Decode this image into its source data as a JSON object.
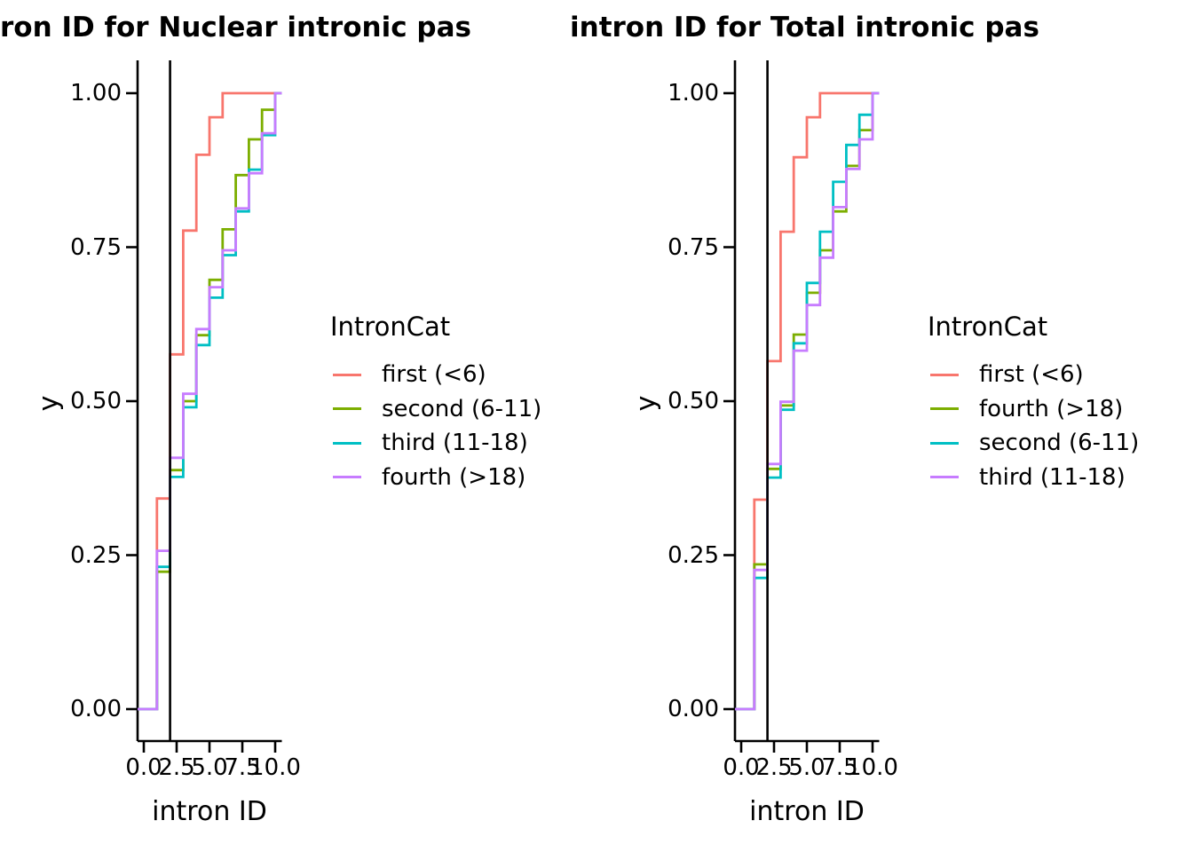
{
  "figure": {
    "background": "#ffffff",
    "text_color": "#000000",
    "axis_color": "#000000",
    "palette": {
      "salmon": "#F8766D",
      "olive": "#7CAE00",
      "teal": "#00BFC4",
      "purple": "#C77CFF"
    }
  },
  "chart_data": [
    {
      "type": "line",
      "subtype": "ecdf-step",
      "title": "ron ID for Nuclear intronic pas",
      "xlabel": "intron ID",
      "ylabel": "y",
      "xlim": [
        0,
        10
      ],
      "ylim": [
        0,
        1
      ],
      "grid": "off",
      "vline_x": 2,
      "x_ticks": {
        "labels": [
          "0.0",
          "2.5",
          "5.0",
          "7.5",
          "10.0"
        ],
        "values": [
          0,
          2.5,
          5,
          7.5,
          10
        ]
      },
      "y_ticks": {
        "labels": [
          "0.00",
          "0.25",
          "0.50",
          "0.75",
          "1.00"
        ],
        "values": [
          0,
          0.25,
          0.5,
          0.75,
          1
        ]
      },
      "legend_position": "right",
      "legend_title": "IntronCat",
      "x": [
        1,
        2,
        3,
        4,
        5,
        6,
        7,
        8,
        9,
        10
      ],
      "series": [
        {
          "name": "first (<6)",
          "color": "#F8766D",
          "values": [
            0.342,
            0.576,
            0.777,
            0.9,
            0.961,
            1,
            1,
            1,
            1,
            1
          ]
        },
        {
          "name": "second (6-11)",
          "color": "#7CAE00",
          "values": [
            0.223,
            0.388,
            0.5,
            0.607,
            0.697,
            0.779,
            0.867,
            0.925,
            0.973,
            1
          ]
        },
        {
          "name": "third (11-18)",
          "color": "#00BFC4",
          "values": [
            0.231,
            0.377,
            0.49,
            0.591,
            0.668,
            0.737,
            0.808,
            0.876,
            0.932,
            1
          ]
        },
        {
          "name": "fourth (>18)",
          "color": "#C77CFF",
          "values": [
            0.257,
            0.408,
            0.512,
            0.617,
            0.685,
            0.745,
            0.813,
            0.87,
            0.935,
            1
          ]
        }
      ]
    },
    {
      "type": "line",
      "subtype": "ecdf-step",
      "title": "intron ID for Total intronic pas",
      "xlabel": "intron ID",
      "ylabel": "y",
      "xlim": [
        0,
        10
      ],
      "ylim": [
        0,
        1
      ],
      "grid": "off",
      "vline_x": 2,
      "x_ticks": {
        "labels": [
          "0.0",
          "2.5",
          "5.0",
          "7.5",
          "10.0"
        ],
        "values": [
          0,
          2.5,
          5,
          7.5,
          10
        ]
      },
      "y_ticks": {
        "labels": [
          "0.00",
          "0.25",
          "0.50",
          "0.75",
          "1.00"
        ],
        "values": [
          0,
          0.25,
          0.5,
          0.75,
          1
        ]
      },
      "legend_position": "right",
      "legend_title": "IntronCat",
      "x": [
        1,
        2,
        3,
        4,
        5,
        6,
        7,
        8,
        9,
        10
      ],
      "series": [
        {
          "name": "first (<6)",
          "color": "#F8766D",
          "values": [
            0.34,
            0.565,
            0.775,
            0.896,
            0.961,
            1,
            1,
            1,
            1,
            1
          ]
        },
        {
          "name": "fourth (>18)",
          "color": "#7CAE00",
          "values": [
            0.235,
            0.39,
            0.493,
            0.608,
            0.676,
            0.745,
            0.808,
            0.882,
            0.94,
            1
          ]
        },
        {
          "name": "second (6-11)",
          "color": "#00BFC4",
          "values": [
            0.213,
            0.376,
            0.486,
            0.594,
            0.692,
            0.775,
            0.856,
            0.916,
            0.965,
            1
          ]
        },
        {
          "name": "third (11-18)",
          "color": "#C77CFF",
          "values": [
            0.226,
            0.398,
            0.499,
            0.582,
            0.656,
            0.733,
            0.815,
            0.877,
            0.925,
            1
          ]
        }
      ]
    }
  ]
}
